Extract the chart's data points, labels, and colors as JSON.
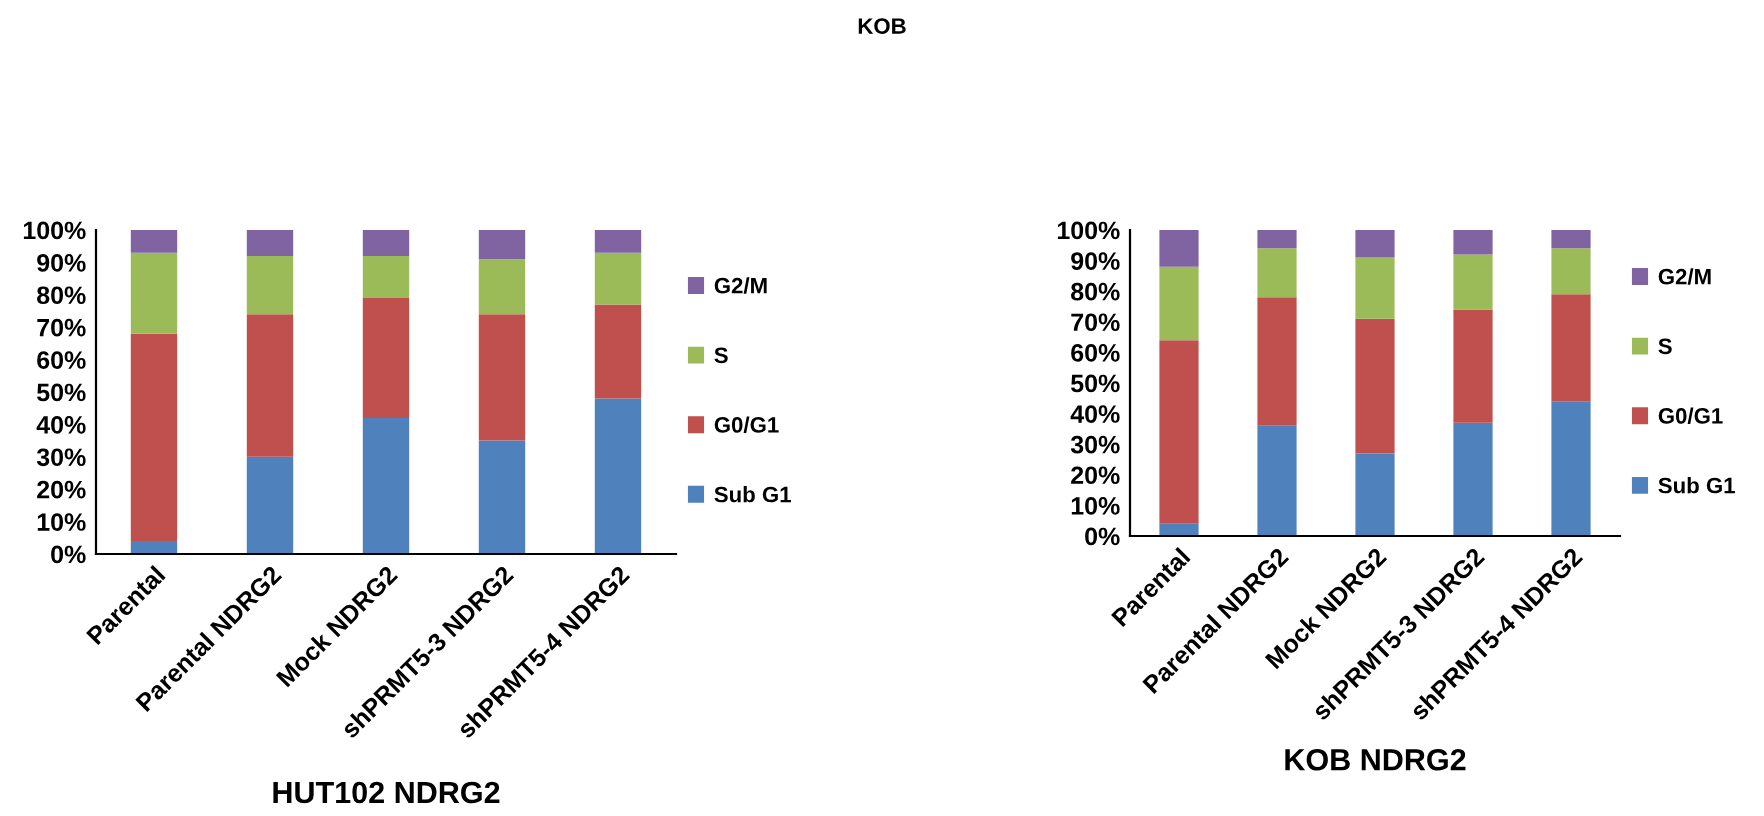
{
  "chart_data": [
    {
      "type": "bar",
      "stacked": true,
      "title": "HUT102 NDRG2",
      "annotations": [
        "KOB"
      ],
      "categories": [
        "Parental",
        "Parental NDRG2",
        "Mock NDRG2",
        "shPRMT5-3 NDRG2",
        "shPRMT5-4 NDRG2"
      ],
      "series": [
        {
          "name": "Sub G1",
          "color": "#4f81bd",
          "values": [
            4,
            30,
            42,
            35,
            48
          ]
        },
        {
          "name": "G0/G1",
          "color": "#c0504d",
          "values": [
            64,
            44,
            37,
            39,
            29
          ]
        },
        {
          "name": "S",
          "color": "#9bbb59",
          "values": [
            25,
            18,
            13,
            17,
            16
          ]
        },
        {
          "name": "G2/M",
          "color": "#8064a2",
          "values": [
            7,
            8,
            8,
            9,
            7
          ]
        }
      ],
      "ylim": [
        0,
        100
      ],
      "yticks": [
        {
          "value": 0,
          "label": "0%"
        },
        {
          "value": 10,
          "label": "10%"
        },
        {
          "value": 20,
          "label": "20%"
        },
        {
          "value": 30,
          "label": "30%"
        },
        {
          "value": 40,
          "label": "40%"
        },
        {
          "value": 50,
          "label": "50%"
        },
        {
          "value": 60,
          "label": "60%"
        },
        {
          "value": 70,
          "label": "70%"
        },
        {
          "value": 80,
          "label": "80%"
        },
        {
          "value": 90,
          "label": "90%"
        },
        {
          "value": 100,
          "label": "100%"
        }
      ],
      "grid": false,
      "legend": "right"
    },
    {
      "type": "bar",
      "stacked": true,
      "title": "KOB NDRG2",
      "categories": [
        "Parental",
        "Parental NDRG2",
        "Mock NDRG2",
        "shPRMT5-3 NDRG2",
        "shPRMT5-4 NDRG2"
      ],
      "series": [
        {
          "name": "Sub G1",
          "color": "#4f81bd",
          "values": [
            4,
            36,
            27,
            37,
            44
          ]
        },
        {
          "name": "G0/G1",
          "color": "#c0504d",
          "values": [
            60,
            42,
            44,
            37,
            35
          ]
        },
        {
          "name": "S",
          "color": "#9bbb59",
          "values": [
            24,
            16,
            20,
            18,
            15
          ]
        },
        {
          "name": "G2/M",
          "color": "#8064a2",
          "values": [
            12,
            6,
            9,
            8,
            6
          ]
        }
      ],
      "ylim": [
        0,
        100
      ],
      "yticks": [
        {
          "value": 0,
          "label": "0%"
        },
        {
          "value": 10,
          "label": "10%"
        },
        {
          "value": 20,
          "label": "20%"
        },
        {
          "value": 30,
          "label": "30%"
        },
        {
          "value": 40,
          "label": "40%"
        },
        {
          "value": 50,
          "label": "50%"
        },
        {
          "value": 60,
          "label": "60%"
        },
        {
          "value": 70,
          "label": "70%"
        },
        {
          "value": 80,
          "label": "80%"
        },
        {
          "value": 90,
          "label": "90%"
        },
        {
          "value": 100,
          "label": "100%"
        }
      ],
      "grid": false,
      "legend": "right"
    }
  ]
}
